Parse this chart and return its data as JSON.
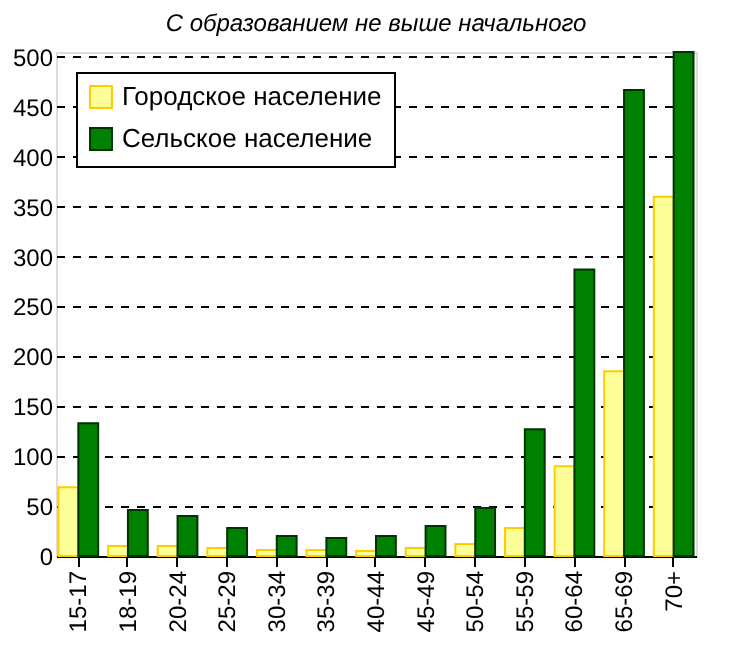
{
  "chart_data": {
    "type": "bar",
    "title": "С образованием не выше начального",
    "categories": [
      "15-17",
      "18-19",
      "20-24",
      "25-29",
      "30-34",
      "35-39",
      "40-44",
      "45-49",
      "50-54",
      "55-59",
      "60-64",
      "65-69",
      "70+"
    ],
    "series": [
      {
        "name": "Городское население",
        "color": "#ffff99",
        "values": [
          69,
          10,
          10,
          8,
          6,
          6,
          5,
          8,
          12,
          28,
          90,
          185,
          360
        ]
      },
      {
        "name": "Сельское население",
        "color": "#008000",
        "values": [
          133,
          46,
          40,
          28,
          20,
          18,
          20,
          30,
          48,
          127,
          287,
          467,
          505
        ]
      }
    ],
    "ylim": [
      0,
      505
    ],
    "yticks": [
      0,
      50,
      100,
      150,
      200,
      250,
      300,
      350,
      400,
      450,
      500
    ],
    "grid": "y",
    "legend": "top left"
  }
}
